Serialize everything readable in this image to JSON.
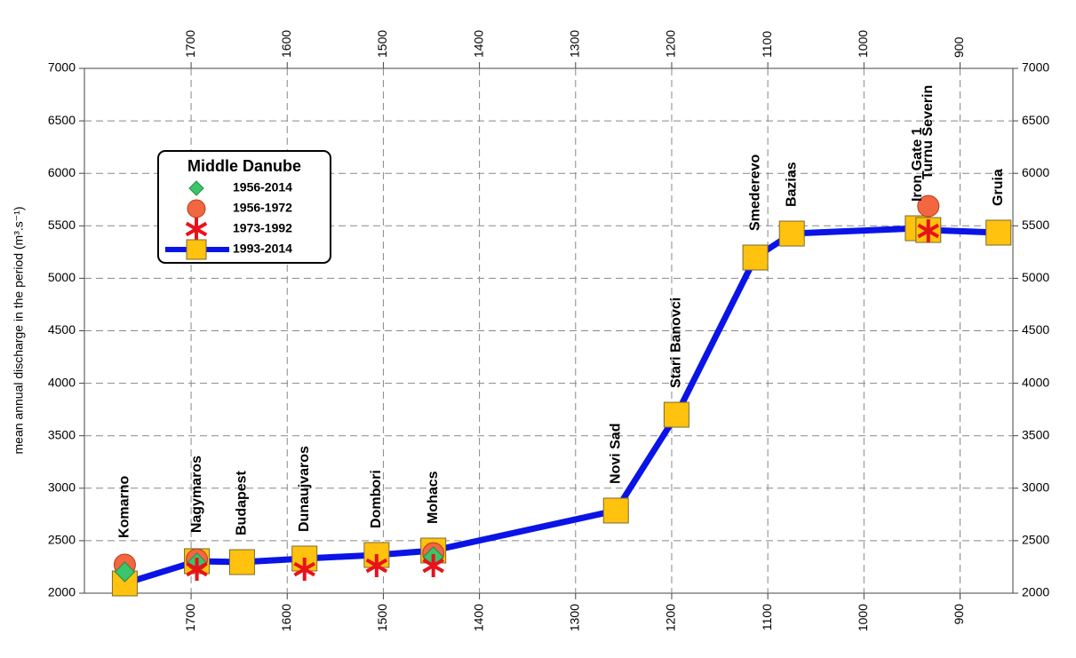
{
  "chart_data": {
    "type": "line",
    "y_label": "mean annual discharge in the period (m³.s⁻¹)",
    "legend_title": "Middle Danube",
    "stations": [
      "Komarno",
      "Nagymaros",
      "Budapest",
      "Dunaujvaros",
      "Dombori",
      "Mohacs",
      "Novi Sad",
      "Stari Banovci",
      "Smederevo",
      "Bazias",
      "Iron Gate 1",
      "Turnu Severin",
      "Gruia"
    ],
    "x": [
      1769,
      1694,
      1647,
      1582,
      1507,
      1448,
      1258,
      1195,
      1113,
      1075,
      944,
      933,
      860
    ],
    "series": [
      {
        "name": "1956-2014",
        "marker": "diamond",
        "color": "#3cc46a",
        "values": [
          2203,
          2288,
          null,
          null,
          null,
          2347,
          null,
          null,
          null,
          null,
          null,
          null,
          null
        ]
      },
      {
        "name": "1956-1972",
        "marker": "circle",
        "color": "#f26640",
        "values": [
          2271,
          2320,
          null,
          null,
          null,
          2380,
          null,
          null,
          null,
          null,
          null,
          5688,
          null
        ]
      },
      {
        "name": "1973-1992",
        "marker": "star",
        "color": "#e8121b",
        "values": [
          null,
          2228,
          null,
          2228,
          2262,
          2262,
          null,
          null,
          null,
          null,
          null,
          5452,
          null
        ]
      },
      {
        "name": "1993-2014",
        "marker": "square-line",
        "color": "#ffc20e",
        "line_color": "#0a14e6",
        "values": [
          2093,
          2305,
          2296,
          2330,
          2364,
          2406,
          2787,
          3700,
          5198,
          5426,
          5477,
          5460,
          5435
        ]
      }
    ],
    "xlim": [
      1811,
      845
    ],
    "xticks": [
      1700,
      1600,
      1500,
      1400,
      1300,
      1200,
      1100,
      1000,
      900
    ],
    "ylim": [
      2000,
      7000
    ],
    "yticks": [
      2000,
      2500,
      3000,
      3500,
      4000,
      4500,
      5000,
      5500,
      6000,
      6500,
      7000
    ],
    "grid": true
  }
}
